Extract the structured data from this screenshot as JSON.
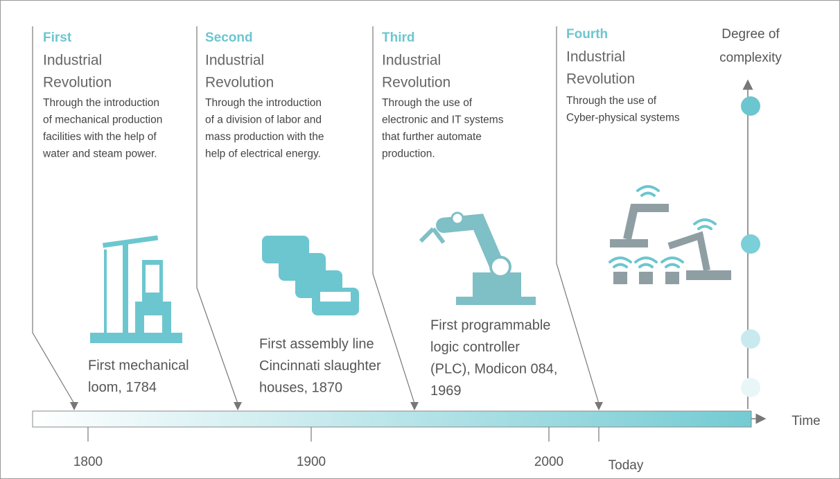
{
  "revolutions": [
    {
      "ordinal": "First",
      "title": [
        "Industrial",
        "Revolution"
      ],
      "description": [
        "Through the introduction",
        "of mechanical production",
        "facilities with the help of",
        "water and steam power."
      ],
      "milestone": [
        "First mechanical",
        "loom, 1784"
      ]
    },
    {
      "ordinal": "Second",
      "title": [
        "Industrial",
        "Revolution"
      ],
      "description": [
        "Through the introduction",
        "of a division of labor and",
        "mass production with the",
        "help of electrical energy."
      ],
      "milestone": [
        "First assembly line",
        "Cincinnati slaughter",
        "houses, 1870"
      ]
    },
    {
      "ordinal": "Third",
      "title": [
        "Industrial",
        "Revolution"
      ],
      "description": [
        "Through the use of",
        "electronic and IT  systems",
        "that further automate",
        "production."
      ],
      "milestone": [
        "First programmable",
        "logic controller",
        "(PLC), Modicon 084,",
        "1969"
      ]
    },
    {
      "ordinal": "Fourth",
      "title": [
        "Industrial",
        "Revolution"
      ],
      "description": [
        "Through the use of",
        "Cyber-physical  systems"
      ],
      "milestone": []
    }
  ],
  "y_axis_label": [
    "Degree of",
    "complexity"
  ],
  "x_axis_label": "Time",
  "time_ticks": [
    "1800",
    "1900",
    "2000",
    "Today"
  ]
}
